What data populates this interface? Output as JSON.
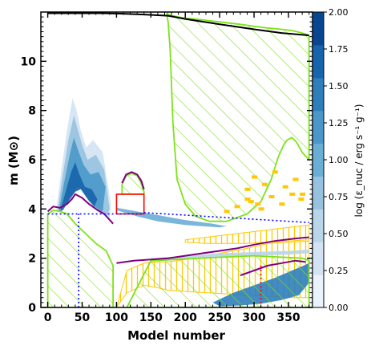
{
  "chart_data": {
    "type": "kippenhahn",
    "xlabel": "Model number",
    "ylabel": "m (M⊙)",
    "xlim": [
      -10,
      385
    ],
    "ylim": [
      0,
      12
    ],
    "x_ticks": [
      "0",
      "50",
      "100",
      "150",
      "200",
      "250",
      "300",
      "350"
    ],
    "y_ticks": [
      "0",
      "2",
      "4",
      "6",
      "8",
      "10"
    ],
    "colorbar": {
      "label": "log (ε_nuc / erg s⁻¹ g⁻¹)",
      "range": [
        0,
        2
      ],
      "ticks": [
        "0.00",
        "0.25",
        "0.50",
        "0.75",
        "1.00",
        "1.25",
        "1.50",
        "1.75",
        "2.00"
      ],
      "colors": [
        "#eaf2fb",
        "#d3e3f3",
        "#b8d5ea",
        "#96c2e0",
        "#6aaed6",
        "#4a98c9",
        "#2e7ebc",
        "#1664ab",
        "#08468f"
      ]
    },
    "total_mass": {
      "x": [
        0,
        30,
        60,
        80,
        110,
        140,
        175,
        200,
        250,
        300,
        340,
        380
      ],
      "y": [
        11.95,
        11.95,
        11.95,
        11.95,
        11.93,
        11.9,
        11.85,
        11.72,
        11.5,
        11.3,
        11.15,
        11.05
      ]
    },
    "convective_zones": [
      {
        "x": [
          0,
          0,
          8,
          18,
          28,
          40,
          55,
          70,
          85,
          95,
          95
        ],
        "y": [
          0,
          3.8,
          3.95,
          3.9,
          3.8,
          3.4,
          3.0,
          2.6,
          2.3,
          1.7,
          0
        ]
      },
      {
        "x": [
          173,
          175,
          178,
          182,
          188,
          200,
          215,
          235,
          260,
          290,
          310,
          325,
          335,
          343,
          348,
          355,
          362,
          370,
          380,
          380,
          370,
          355,
          340,
          320,
          300,
          280,
          250,
          220,
          200,
          190,
          182,
          177,
          175,
          174
        ],
        "y": [
          11.9,
          11.6,
          10.5,
          7.5,
          5.2,
          4.2,
          3.7,
          3.5,
          3.5,
          3.8,
          4.3,
          5.2,
          6.1,
          6.6,
          6.8,
          6.9,
          6.7,
          6.3,
          6.0,
          11.05,
          11.15,
          11.25,
          11.3,
          11.35,
          11.42,
          11.5,
          11.6,
          11.7,
          11.75,
          11.8,
          11.85,
          11.88,
          11.9,
          11.95
        ]
      },
      {
        "x": [
          108,
          114,
          122,
          130,
          135,
          140,
          140,
          130,
          120,
          108
        ],
        "y": [
          5.0,
          5.35,
          5.45,
          5.35,
          5.1,
          4.7,
          4.6,
          4.6,
          4.6,
          4.6
        ]
      },
      {
        "x": [
          115,
          150,
          220,
          300,
          370,
          380,
          380,
          330,
          250,
          150,
          115
        ],
        "y": [
          0.0,
          1.9,
          2.0,
          2.1,
          2.0,
          1.9,
          0,
          0,
          0,
          0,
          0
        ]
      }
    ],
    "semiconvective_zones": [
      {
        "x": [
          100,
          115,
          140,
          160,
          175,
          200,
          230,
          260,
          290,
          320,
          350,
          380,
          380,
          350,
          320,
          290,
          260,
          230,
          200,
          175,
          160,
          140,
          115,
          100
        ],
        "y": [
          0.0,
          1.5,
          1.8,
          1.85,
          1.85,
          1.95,
          2.1,
          2.25,
          2.4,
          2.6,
          2.65,
          2.7,
          0.4,
          0.4,
          0.45,
          0.5,
          0.55,
          0.6,
          0.65,
          0.7,
          0.8,
          0.9,
          0.6,
          0.0
        ]
      },
      {
        "x": [
          200,
          230,
          260,
          290,
          320,
          350,
          380,
          380,
          350,
          320,
          290,
          260,
          230,
          200
        ],
        "y": [
          2.75,
          2.85,
          2.95,
          3.05,
          3.15,
          3.25,
          3.35,
          2.75,
          2.7,
          2.65,
          2.6,
          2.6,
          2.6,
          2.65
        ]
      }
    ],
    "overshoot_markers": [
      {
        "x": [
          290,
          300,
          315,
          330,
          345,
          360,
          370
        ],
        "y": [
          4.8,
          5.3,
          5.0,
          5.5,
          4.9,
          5.2,
          4.6
        ]
      },
      {
        "x": [
          295,
          310,
          325,
          340,
          355,
          368
        ],
        "y": [
          4.3,
          4.0,
          4.5,
          4.2,
          4.6,
          4.4
        ]
      },
      {
        "x": [
          260,
          275,
          290,
          305
        ],
        "y": [
          3.9,
          4.1,
          4.4,
          4.2
        ]
      }
    ],
    "burning_regions": [
      {
        "level": 0.3,
        "x": [
          12,
          20,
          28,
          36,
          42,
          48,
          56,
          66,
          80,
          92,
          90,
          74,
          62,
          54,
          48,
          40,
          30,
          20,
          14
        ],
        "y": [
          3.9,
          5.6,
          7.2,
          8.5,
          8.0,
          7.2,
          6.5,
          6.8,
          6.3,
          4.2,
          3.6,
          3.9,
          4.3,
          4.9,
          5.2,
          5.0,
          4.6,
          4.1,
          3.9
        ]
      },
      {
        "level": 0.7,
        "x": [
          14,
          22,
          30,
          38,
          44,
          50,
          58,
          70,
          82,
          90,
          86,
          72,
          60,
          52,
          46,
          38,
          28,
          18
        ],
        "y": [
          3.9,
          5.4,
          6.8,
          7.8,
          7.2,
          6.6,
          6.0,
          6.2,
          5.6,
          4.0,
          3.7,
          3.9,
          4.3,
          4.7,
          4.9,
          4.8,
          4.4,
          4.0
        ]
      },
      {
        "level": 1.2,
        "x": [
          16,
          24,
          32,
          38,
          44,
          52,
          62,
          74,
          84,
          80,
          68,
          58,
          50,
          44,
          36,
          26,
          18
        ],
        "y": [
          3.9,
          5.1,
          6.2,
          6.9,
          6.4,
          5.8,
          5.4,
          5.5,
          4.9,
          3.9,
          4.1,
          4.5,
          4.8,
          4.9,
          4.6,
          4.2,
          3.95
        ]
      },
      {
        "level": 1.7,
        "x": [
          18,
          26,
          34,
          40,
          46,
          54,
          64,
          72,
          68,
          58,
          48,
          40,
          30,
          22
        ],
        "y": [
          3.9,
          4.7,
          5.5,
          5.9,
          5.4,
          4.9,
          4.8,
          4.4,
          4.1,
          4.4,
          4.8,
          4.7,
          4.3,
          3.95
        ]
      },
      {
        "level": 1.0,
        "x": [
          100,
          130,
          170,
          200,
          240,
          260,
          250,
          200,
          160,
          130,
          100
        ],
        "y": [
          4.05,
          3.9,
          3.7,
          3.55,
          3.4,
          3.3,
          3.25,
          3.35,
          3.5,
          3.7,
          3.95
        ]
      },
      {
        "level": 0.6,
        "x": [
          150,
          200,
          250,
          300,
          350,
          380,
          380,
          350,
          300,
          250,
          200,
          150
        ],
        "y": [
          2.0,
          2.1,
          2.2,
          2.25,
          2.3,
          2.35,
          2.2,
          2.15,
          2.1,
          2.05,
          1.95,
          1.85
        ]
      },
      {
        "level": 1.4,
        "x": [
          240,
          270,
          300,
          330,
          355,
          372,
          380,
          380,
          365,
          340,
          310,
          280,
          250
        ],
        "y": [
          0.2,
          0.6,
          0.9,
          1.2,
          1.5,
          1.7,
          1.8,
          1.0,
          0.5,
          0.3,
          0.15,
          0.08,
          0.05
        ]
      }
    ],
    "boundary_lines": [
      {
        "color": "#800080",
        "x": [
          0,
          8,
          18,
          28,
          35,
          40,
          50,
          60,
          70,
          82,
          92,
          95
        ],
        "y": [
          3.9,
          4.1,
          4.05,
          4.2,
          4.4,
          4.6,
          4.45,
          4.2,
          4.0,
          3.8,
          3.5,
          3.4
        ]
      },
      {
        "color": "#800080",
        "x": [
          100,
          125,
          150,
          175,
          200,
          225,
          250,
          275,
          300,
          330,
          360,
          380
        ],
        "y": [
          1.8,
          1.9,
          1.95,
          2.0,
          2.1,
          2.2,
          2.3,
          2.4,
          2.55,
          2.7,
          2.8,
          2.85
        ]
      },
      {
        "color": "#800080",
        "x": [
          280,
          300,
          320,
          340,
          360,
          375
        ],
        "y": [
          1.3,
          1.5,
          1.7,
          1.8,
          1.9,
          1.85
        ]
      },
      {
        "color": "#800080",
        "x": [
          108,
          114,
          122,
          130,
          136,
          140
        ],
        "y": [
          5.05,
          5.4,
          5.5,
          5.4,
          5.15,
          4.8
        ]
      }
    ],
    "red_region": {
      "x": [
        100,
        100,
        125,
        140,
        140,
        125,
        100
      ],
      "y": [
        3.8,
        4.6,
        4.6,
        4.6,
        3.8,
        3.8,
        3.8
      ]
    },
    "dotted_lines": [
      {
        "color": "#0000ff",
        "x": [
          0,
          140
        ],
        "y": [
          3.8,
          3.8
        ]
      },
      {
        "color": "#0000ff",
        "x": [
          140,
          380
        ],
        "y": [
          3.85,
          3.45
        ]
      },
      {
        "color": "#0000ff",
        "x": [
          45,
          45
        ],
        "y": [
          0,
          3.8
        ]
      },
      {
        "color": "#ff0000",
        "x": [
          310,
          310
        ],
        "y": [
          0,
          1.7
        ]
      }
    ]
  }
}
